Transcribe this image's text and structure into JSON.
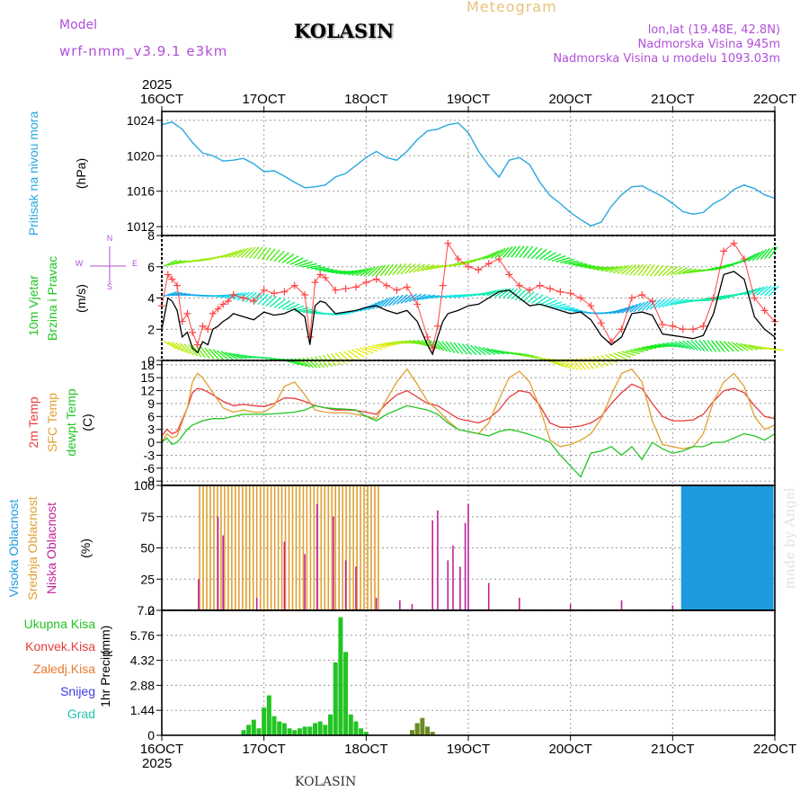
{
  "header": {
    "model_label": "Model",
    "model_name": "wrf-nmm_v3.9.1 e3km",
    "title": "KOLASIN",
    "meteogram_label": "Meteogram",
    "lonlat": "lon,lat (19.48E, 42.8N)",
    "altitude": "Nadmorska Visina 945m",
    "model_altitude": "Nadmorska Visina u modelu 1093.03m"
  },
  "footer": {
    "station": "KOLASIN",
    "credit": "made by Angel"
  },
  "colors": {
    "pressure": "#28a8e0",
    "temp2m": "#e83b3b",
    "sfc": "#e0a030",
    "dewpt": "#22c422",
    "high_cloud": "#1e9be0",
    "mid_cloud": "#e0a030",
    "low_cloud": "#c0209a",
    "total_precip": "#22c422",
    "conv_precip": "#e83b3b",
    "snow": "#3b3be8",
    "hail": "#22c4b0",
    "frozen_precip": "#e87a30",
    "wind_speed": "#000000",
    "wind_gust": "#ff4444"
  },
  "chart_data": [
    {
      "id": "x_axis",
      "type": "line",
      "year": "2025",
      "categories": [
        "16OCT",
        "17OCT",
        "18OCT",
        "19OCT",
        "20OCT",
        "21OCT",
        "22OCT"
      ],
      "xlim": [
        0,
        6
      ]
    },
    {
      "id": "pressure",
      "type": "line",
      "ylabel": "Pritisak na nivou mora",
      "unit": "(hPa)",
      "ylim": [
        1011,
        1025
      ],
      "yticks": [
        "1024",
        "1020",
        "1016",
        "1012"
      ],
      "series": [
        {
          "name": "pressure",
          "x": [
            0,
            0.1,
            0.2,
            0.3,
            0.4,
            0.5,
            0.6,
            0.7,
            0.8,
            0.9,
            1.0,
            1.1,
            1.2,
            1.3,
            1.4,
            1.5,
            1.6,
            1.7,
            1.8,
            1.9,
            2.0,
            2.1,
            2.2,
            2.3,
            2.4,
            2.5,
            2.6,
            2.7,
            2.8,
            2.9,
            3.0,
            3.1,
            3.2,
            3.3,
            3.4,
            3.5,
            3.6,
            3.7,
            3.8,
            3.9,
            4.0,
            4.1,
            4.2,
            4.3,
            4.4,
            4.5,
            4.6,
            4.7,
            4.8,
            4.9,
            5.0,
            5.1,
            5.2,
            5.3,
            5.4,
            5.5,
            5.6,
            5.7,
            5.8,
            5.9,
            6.0
          ],
          "values": [
            1023.5,
            1023.8,
            1023.0,
            1021.5,
            1020.3,
            1020.0,
            1019.4,
            1019.5,
            1019.7,
            1019.1,
            1018.2,
            1018.3,
            1017.7,
            1017.0,
            1016.4,
            1016.5,
            1016.7,
            1017.6,
            1018.0,
            1018.9,
            1019.8,
            1020.5,
            1019.8,
            1019.5,
            1020.5,
            1021.8,
            1022.8,
            1023.0,
            1023.5,
            1023.7,
            1022.6,
            1020.5,
            1018.9,
            1017.6,
            1019.5,
            1019.8,
            1019.0,
            1017.0,
            1015.5,
            1014.6,
            1013.6,
            1012.8,
            1012.1,
            1012.5,
            1014.3,
            1015.6,
            1016.5,
            1016.6,
            1016.0,
            1015.4,
            1014.6,
            1013.7,
            1013.4,
            1013.6,
            1014.6,
            1015.2,
            1016.2,
            1016.7,
            1016.3,
            1015.6,
            1015.2
          ]
        }
      ]
    },
    {
      "id": "wind",
      "type": "line",
      "ylabel": [
        "10m Vjetar",
        "Brzina i Pravac"
      ],
      "unit": "(m/s)",
      "compass": [
        "N",
        "S",
        "W",
        "E"
      ],
      "ylim": [
        0,
        8
      ],
      "yticks": [
        "0",
        "2",
        "4",
        "6",
        "8"
      ],
      "series": [
        {
          "name": "wind speed",
          "x": [
            0,
            0.06,
            0.1,
            0.15,
            0.2,
            0.25,
            0.3,
            0.35,
            0.4,
            0.45,
            0.5,
            0.55,
            0.6,
            0.65,
            0.7,
            0.8,
            0.9,
            1.0,
            1.1,
            1.2,
            1.3,
            1.4,
            1.45,
            1.5,
            1.55,
            1.6,
            1.7,
            1.8,
            1.9,
            2.0,
            2.1,
            2.2,
            2.3,
            2.4,
            2.5,
            2.6,
            2.65,
            2.7,
            2.75,
            2.8,
            2.9,
            3.0,
            3.1,
            3.2,
            3.3,
            3.4,
            3.5,
            3.6,
            3.7,
            3.8,
            3.9,
            4.0,
            4.1,
            4.2,
            4.3,
            4.4,
            4.5,
            4.6,
            4.7,
            4.8,
            4.9,
            5.0,
            5.1,
            5.2,
            5.3,
            5.4,
            5.5,
            5.6,
            5.7,
            5.8,
            5.9,
            6.0
          ],
          "values": [
            2.0,
            4.0,
            3.8,
            3.2,
            1.5,
            1.8,
            0.8,
            0.5,
            1.2,
            1.0,
            2.0,
            2.2,
            2.5,
            2.7,
            3.0,
            2.8,
            2.6,
            3.1,
            2.9,
            3.0,
            3.3,
            2.8,
            1.0,
            3.5,
            3.8,
            3.7,
            3.0,
            3.1,
            3.2,
            3.4,
            3.5,
            3.2,
            3.0,
            3.2,
            2.5,
            1.0,
            0.4,
            1.5,
            2.5,
            3.0,
            3.2,
            3.5,
            3.6,
            4.0,
            4.4,
            4.5,
            4.0,
            3.5,
            3.6,
            3.4,
            3.2,
            3.0,
            3.1,
            2.6,
            1.6,
            1.0,
            1.5,
            3.0,
            3.1,
            2.9,
            1.7,
            1.6,
            1.5,
            1.4,
            1.6,
            3.0,
            5.5,
            5.7,
            5.2,
            2.8,
            2.0,
            1.5
          ]
        },
        {
          "name": "wind gust",
          "x": [
            0,
            0.06,
            0.1,
            0.15,
            0.2,
            0.25,
            0.3,
            0.35,
            0.4,
            0.45,
            0.5,
            0.55,
            0.6,
            0.65,
            0.7,
            0.8,
            0.9,
            1.0,
            1.1,
            1.2,
            1.3,
            1.4,
            1.45,
            1.5,
            1.55,
            1.6,
            1.7,
            1.8,
            1.9,
            2.0,
            2.1,
            2.2,
            2.3,
            2.4,
            2.5,
            2.6,
            2.65,
            2.7,
            2.75,
            2.8,
            2.9,
            3.0,
            3.1,
            3.2,
            3.3,
            3.4,
            3.5,
            3.6,
            3.7,
            3.8,
            3.9,
            4.0,
            4.1,
            4.2,
            4.3,
            4.4,
            4.5,
            4.6,
            4.7,
            4.8,
            4.9,
            5.0,
            5.1,
            5.2,
            5.3,
            5.4,
            5.5,
            5.6,
            5.7,
            5.8,
            5.9,
            6.0
          ],
          "values": [
            3.5,
            5.5,
            5.2,
            4.8,
            2.5,
            3.0,
            1.8,
            1.0,
            2.2,
            2.0,
            3.0,
            3.3,
            3.6,
            3.8,
            4.2,
            4.0,
            3.8,
            4.5,
            4.3,
            4.4,
            4.8,
            4.2,
            1.5,
            5.0,
            5.5,
            5.3,
            4.5,
            4.6,
            4.7,
            5.0,
            5.2,
            4.8,
            4.5,
            4.7,
            3.6,
            1.5,
            0.8,
            2.2,
            4.8,
            7.5,
            6.5,
            6.0,
            5.8,
            6.2,
            6.5,
            5.5,
            4.8,
            4.5,
            4.8,
            4.6,
            4.4,
            4.3,
            4.0,
            3.5,
            2.4,
            1.2,
            2.0,
            4.0,
            4.2,
            3.8,
            2.3,
            2.2,
            2.0,
            2.0,
            2.2,
            4.0,
            7.0,
            7.5,
            6.5,
            4.0,
            3.2,
            2.5
          ]
        }
      ]
    },
    {
      "id": "temperature",
      "type": "line",
      "ylabel": [
        "2m Temp",
        "SFC Temp",
        "dewpt Temp"
      ],
      "unit": "(C)",
      "ylim": [
        -10,
        19
      ],
      "yticks": [
        "18",
        "15",
        "12",
        "9",
        "6",
        "3",
        "0",
        "-3",
        "-6",
        "-9"
      ],
      "series": [
        {
          "name": "2m Temp",
          "x": [
            0,
            0.05,
            0.1,
            0.15,
            0.25,
            0.3,
            0.35,
            0.4,
            0.5,
            0.6,
            0.7,
            0.8,
            0.9,
            1.0,
            1.1,
            1.2,
            1.3,
            1.4,
            1.5,
            1.6,
            1.7,
            1.8,
            1.9,
            2.0,
            2.1,
            2.2,
            2.3,
            2.4,
            2.5,
            2.6,
            2.7,
            2.8,
            2.9,
            3.0,
            3.1,
            3.2,
            3.3,
            3.4,
            3.5,
            3.6,
            3.7,
            3.8,
            3.9,
            4.0,
            4.1,
            4.2,
            4.3,
            4.4,
            4.5,
            4.6,
            4.7,
            4.8,
            4.9,
            5.0,
            5.1,
            5.2,
            5.3,
            5.4,
            5.5,
            5.6,
            5.7,
            5.8,
            5.9,
            6.0
          ],
          "values": [
            1.5,
            3.0,
            2.0,
            2.5,
            8.0,
            11.5,
            12.5,
            12.3,
            11.0,
            9.5,
            8.5,
            8.8,
            8.5,
            8.3,
            9.0,
            10.3,
            10.2,
            9.5,
            8.5,
            8.0,
            7.5,
            7.5,
            7.4,
            7.0,
            6.5,
            9.0,
            11.0,
            12.0,
            10.5,
            9.0,
            8.5,
            7.0,
            5.5,
            5.0,
            4.5,
            5.5,
            7.5,
            10.5,
            12.0,
            11.5,
            8.5,
            4.5,
            3.5,
            3.5,
            3.8,
            4.5,
            6.0,
            9.0,
            11.5,
            13.5,
            12.5,
            9.0,
            6.0,
            5.0,
            5.0,
            5.2,
            6.5,
            9.5,
            12.0,
            12.5,
            11.5,
            8.5,
            6.0,
            5.5
          ]
        },
        {
          "name": "SFC Temp",
          "x": [
            0,
            0.05,
            0.1,
            0.15,
            0.25,
            0.3,
            0.35,
            0.4,
            0.5,
            0.6,
            0.7,
            0.8,
            0.9,
            1.0,
            1.1,
            1.2,
            1.3,
            1.4,
            1.5,
            1.6,
            1.7,
            1.8,
            1.9,
            2.0,
            2.1,
            2.2,
            2.3,
            2.4,
            2.5,
            2.6,
            2.7,
            2.8,
            2.9,
            3.0,
            3.1,
            3.2,
            3.3,
            3.4,
            3.5,
            3.6,
            3.7,
            3.8,
            3.9,
            4.0,
            4.1,
            4.2,
            4.3,
            4.4,
            4.5,
            4.6,
            4.7,
            4.8,
            4.9,
            5.0,
            5.1,
            5.2,
            5.3,
            5.4,
            5.5,
            5.6,
            5.7,
            5.8,
            5.9,
            6.0
          ],
          "values": [
            0.0,
            2.0,
            1.0,
            1.5,
            8.0,
            14.0,
            16.0,
            15.0,
            11.5,
            8.0,
            7.0,
            7.5,
            7.0,
            7.0,
            8.5,
            13.0,
            14.0,
            11.0,
            7.5,
            7.0,
            6.8,
            6.9,
            6.5,
            6.0,
            5.5,
            10.0,
            14.0,
            17.0,
            13.5,
            9.5,
            7.5,
            5.0,
            3.0,
            2.5,
            2.0,
            4.5,
            10.0,
            15.0,
            16.5,
            14.0,
            8.0,
            0.5,
            -1.0,
            -0.5,
            0.5,
            2.0,
            5.5,
            11.0,
            16.0,
            17.0,
            14.0,
            5.0,
            -0.5,
            -1.0,
            -1.5,
            -1.0,
            2.0,
            9.5,
            14.0,
            16.0,
            13.0,
            6.0,
            3.0,
            4.0
          ]
        },
        {
          "name": "dewpt Temp",
          "x": [
            0,
            0.05,
            0.1,
            0.15,
            0.25,
            0.3,
            0.35,
            0.4,
            0.5,
            0.6,
            0.7,
            0.8,
            0.9,
            1.0,
            1.1,
            1.2,
            1.3,
            1.4,
            1.5,
            1.6,
            1.7,
            1.8,
            1.9,
            2.0,
            2.1,
            2.2,
            2.3,
            2.4,
            2.5,
            2.6,
            2.7,
            2.8,
            2.9,
            3.0,
            3.1,
            3.2,
            3.3,
            3.4,
            3.5,
            3.6,
            3.7,
            3.8,
            3.9,
            4.0,
            4.1,
            4.2,
            4.3,
            4.4,
            4.5,
            4.6,
            4.7,
            4.8,
            4.9,
            5.0,
            5.1,
            5.2,
            5.3,
            5.4,
            5.5,
            5.6,
            5.7,
            5.8,
            5.9,
            6.0
          ],
          "values": [
            0.0,
            1.0,
            -0.5,
            0.0,
            3.0,
            4.0,
            4.5,
            5.0,
            5.5,
            5.5,
            6.0,
            6.5,
            6.5,
            6.5,
            6.6,
            6.8,
            7.0,
            7.5,
            8.5,
            8.0,
            7.8,
            7.7,
            7.5,
            6.0,
            5.0,
            6.5,
            7.5,
            8.5,
            8.0,
            7.5,
            6.5,
            4.5,
            3.0,
            2.5,
            2.0,
            1.5,
            2.5,
            3.0,
            2.5,
            1.8,
            1.0,
            0.0,
            -3.0,
            -5.5,
            -8.0,
            -2.5,
            -2.0,
            -1.0,
            -3.0,
            -1.0,
            -4.0,
            0.0,
            -1.5,
            -2.5,
            -2.0,
            -1.0,
            -1.0,
            0.0,
            0.0,
            1.0,
            2.0,
            1.5,
            0.5,
            2.0
          ]
        }
      ]
    },
    {
      "id": "clouds",
      "type": "bar",
      "ylabel": [
        "Visoka Oblacnost",
        "Srednja Oblacnost",
        "Niska Oblacnost"
      ],
      "unit": "(%)",
      "ylim": [
        0,
        100
      ],
      "yticks": [
        "100",
        "75",
        "50",
        "25",
        "0"
      ],
      "series": [
        {
          "name": "Srednja Oblacnost",
          "x_range": [
            0.37,
            2.14
          ],
          "step": 0.035,
          "value": 100
        },
        {
          "name": "Niska Oblacnost",
          "x": [
            0.36,
            0.55,
            0.6,
            0.93,
            1.2,
            1.4,
            1.52,
            1.68,
            1.8,
            1.9,
            2.1,
            2.33,
            2.45,
            2.65,
            2.7,
            2.8,
            2.85,
            2.92,
            2.97,
            3.0,
            3.2,
            3.5,
            4.0,
            4.5,
            5.0,
            5.5
          ],
          "values": [
            25,
            75,
            60,
            10,
            55,
            45,
            85,
            75,
            40,
            35,
            10,
            8,
            5,
            72,
            80,
            40,
            52,
            35,
            70,
            85,
            22,
            10,
            5,
            8,
            4,
            5
          ]
        },
        {
          "name": "Visoka Oblacnost",
          "x_range": [
            5.1,
            6.0
          ],
          "step": 0.03,
          "value": 100
        }
      ]
    },
    {
      "id": "precip",
      "type": "bar",
      "ylabel": "1hr Precip",
      "unit": "(mm)",
      "legend": [
        "Ukupna Kisa",
        "Konvek.Kisa",
        "Zaledj.Kisa",
        "Snijeg",
        "Grad"
      ],
      "ylim": [
        0,
        7.2
      ],
      "yticks": [
        "7.2",
        "5.76",
        "4.32",
        "2.88",
        "1.44",
        "0"
      ],
      "series": [
        {
          "name": "Ukupna Kisa",
          "x": [
            0.8,
            0.85,
            0.9,
            0.95,
            1.0,
            1.05,
            1.1,
            1.15,
            1.2,
            1.25,
            1.3,
            1.35,
            1.4,
            1.45,
            1.5,
            1.55,
            1.6,
            1.65,
            1.7,
            1.75,
            1.8,
            1.85,
            1.9,
            1.95,
            2.0
          ],
          "values": [
            0.3,
            0.6,
            0.9,
            0.4,
            1.6,
            2.3,
            1.1,
            0.8,
            0.7,
            0.4,
            0.3,
            0.4,
            0.5,
            0.5,
            0.7,
            0.8,
            0.6,
            1.2,
            4.2,
            6.8,
            4.8,
            1.2,
            0.8,
            0.4,
            0.2
          ]
        },
        {
          "name": "Zaledj.Kisa",
          "x": [
            2.45,
            2.5,
            2.55,
            2.6,
            2.65
          ],
          "values": [
            0.3,
            0.7,
            1.0,
            0.5,
            0.2
          ]
        }
      ]
    }
  ]
}
